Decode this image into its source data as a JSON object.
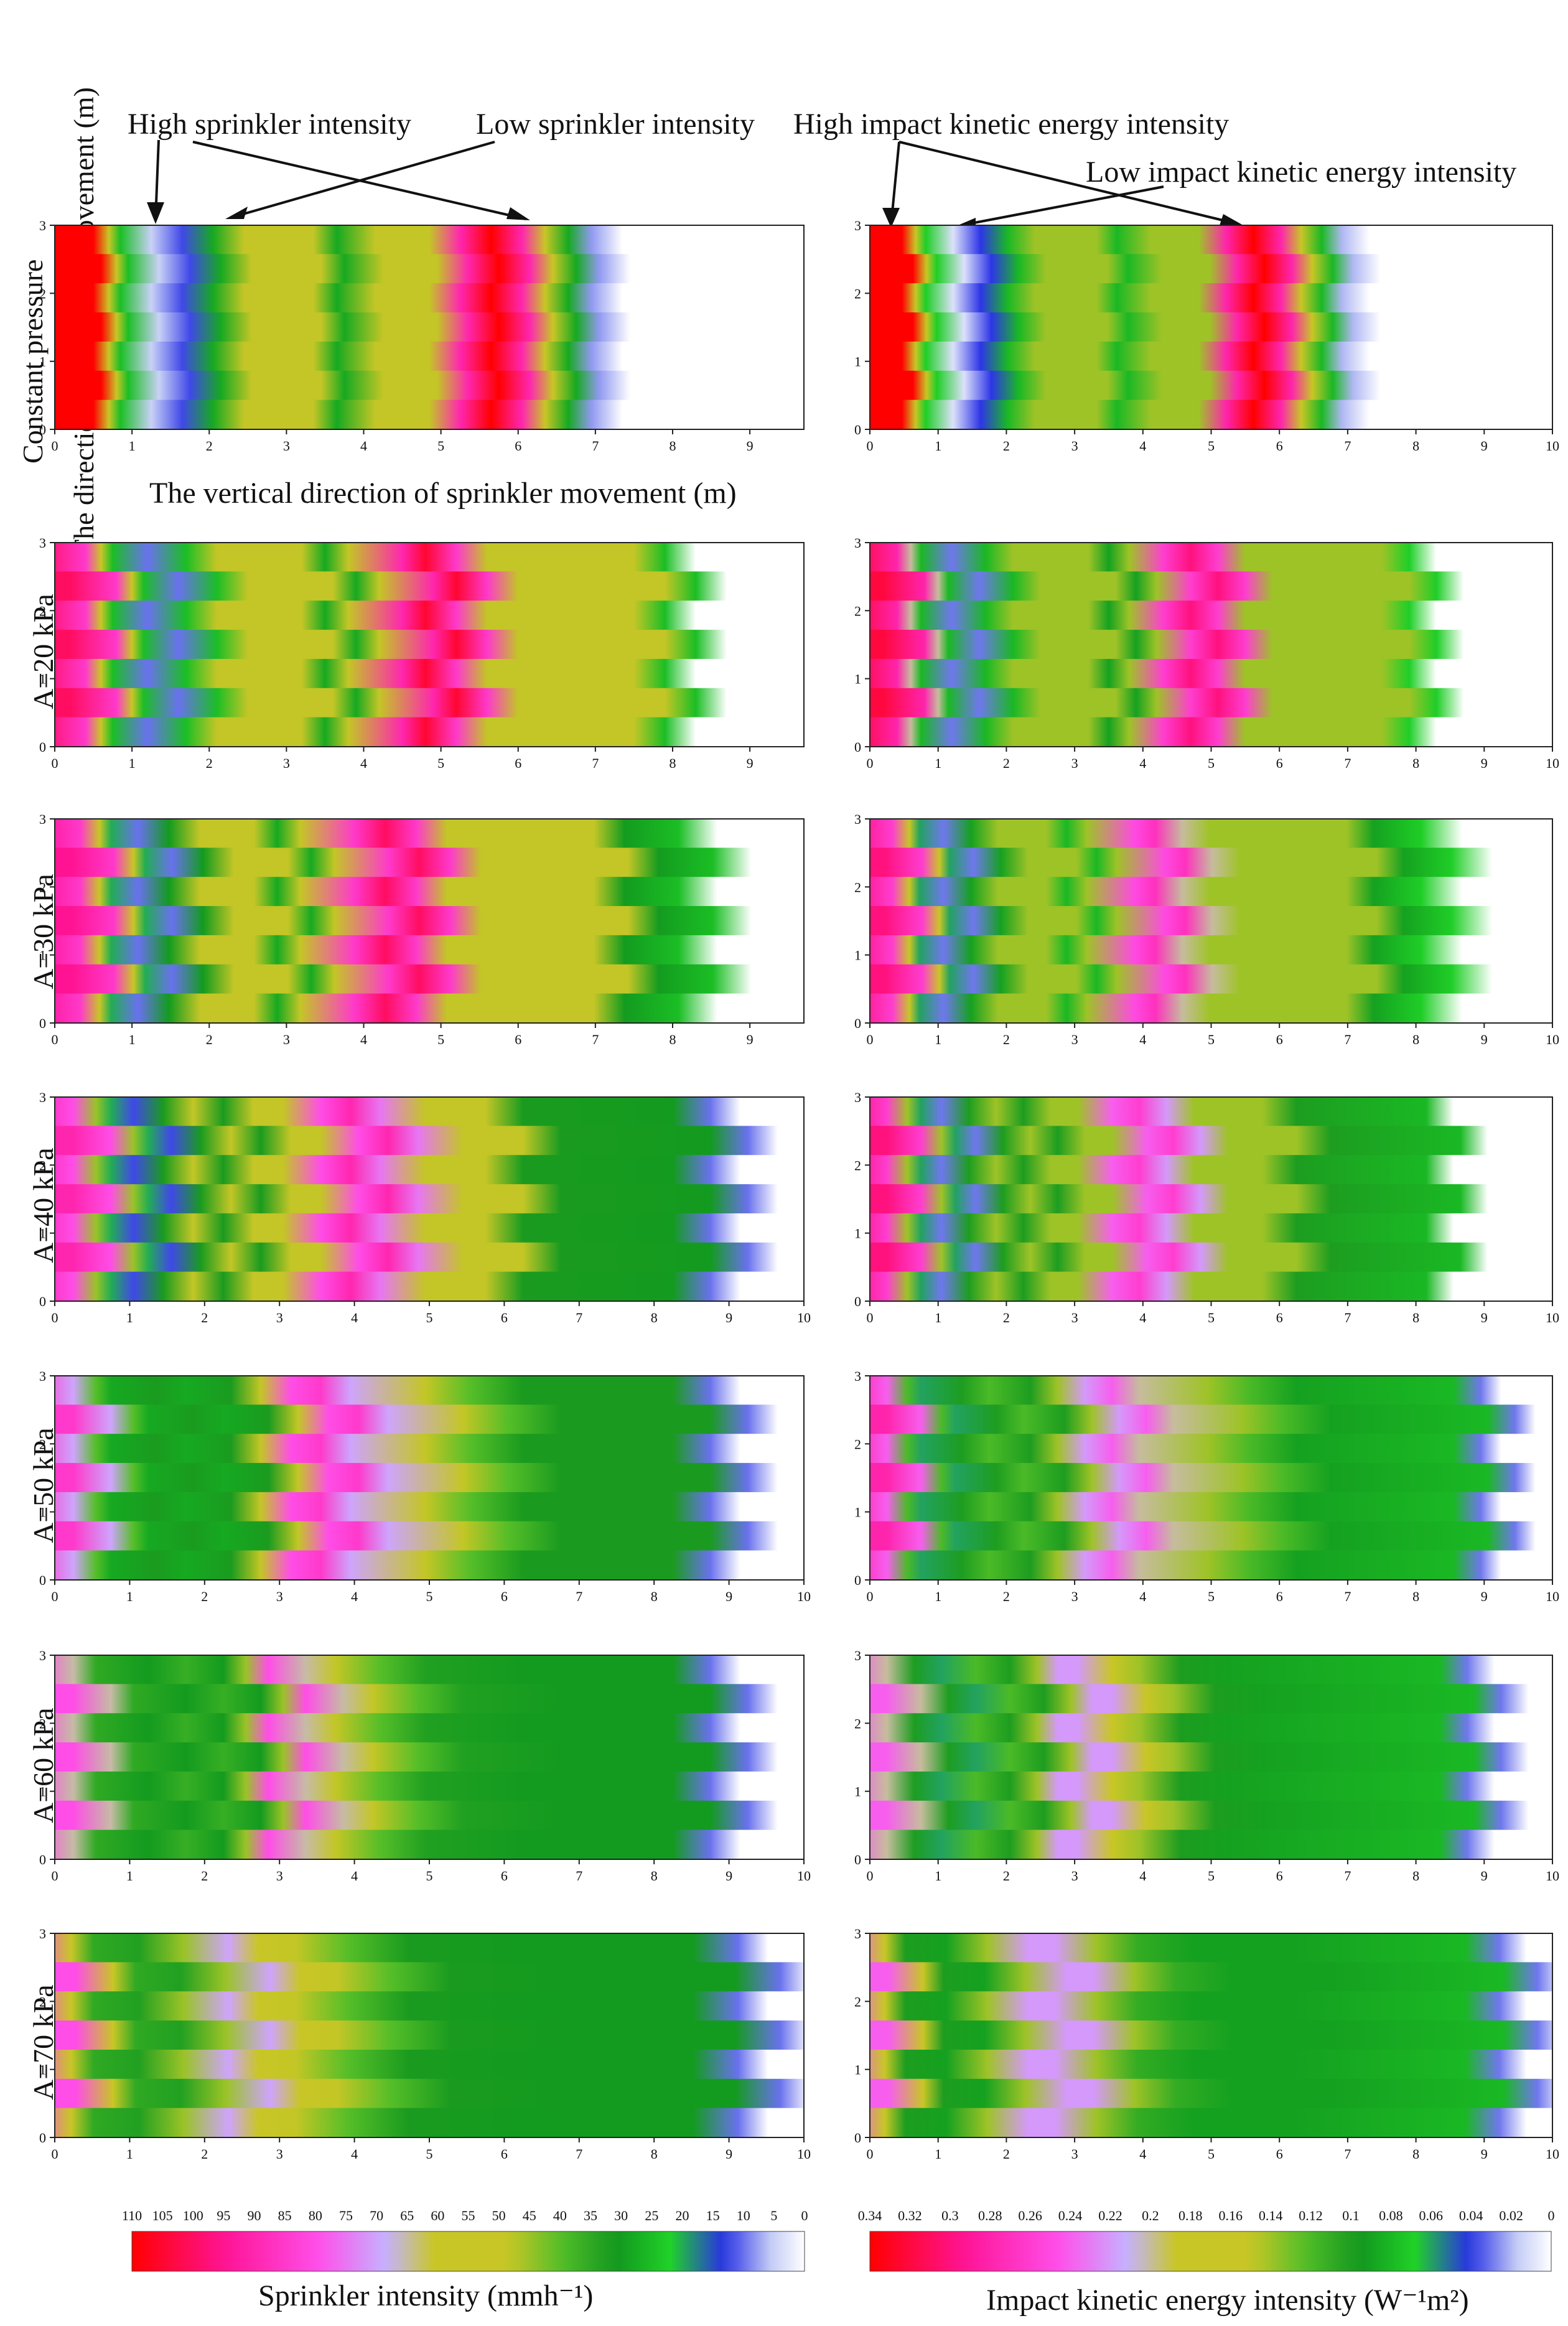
{
  "figure": {
    "annotations": {
      "high_sprinkler": "High sprinkler intensity",
      "low_sprinkler": "Low sprinkler intensity",
      "high_impact": "High impact kinetic energy intensity",
      "low_impact": "Low impact kinetic energy intensity"
    },
    "y_axis_title": "The direction  of sprinkler movement (m)",
    "x_axis_title": "The vertical direction  of sprinkler movement (m)",
    "row_labels": [
      "Constant pressure",
      "A=20 kPa",
      "A=30 kPa",
      "A=40 kPa",
      "A=50 kPa",
      "A=60 kPa",
      "A=70 kPa"
    ],
    "colorbar_left": {
      "ticks": [
        "110",
        "105",
        "100",
        "95",
        "90",
        "85",
        "80",
        "75",
        "70",
        "65",
        "60",
        "55",
        "50",
        "45",
        "40",
        "35",
        "30",
        "25",
        "20",
        "15",
        "10",
        "5",
        "0"
      ],
      "label": "Sprinkler intensity (mmh⁻¹)"
    },
    "colorbar_right": {
      "ticks": [
        "0.34",
        "0.32",
        "0.3",
        "0.28",
        "0.26",
        "0.24",
        "0.22",
        "0.2",
        "0.18",
        "0.16",
        "0.14",
        "0.12",
        "0.1",
        "0.08",
        "0.06",
        "0.04",
        "0.02",
        "0"
      ],
      "label": "Impact kinetic energy intensity (W⁻¹m²)"
    }
  },
  "chart_data": [
    {
      "type": "heatmap",
      "column": "Sprinkler intensity",
      "row": "Constant pressure",
      "xlim": [
        0,
        9.7
      ],
      "x_ticks": [
        0,
        1,
        2,
        3,
        4,
        5,
        6,
        7,
        8,
        9
      ],
      "ylim": [
        0,
        3
      ],
      "y_ticks": [
        0,
        1,
        2,
        3
      ],
      "profile_x": [
        0,
        0.55,
        0.75,
        0.9,
        1.3,
        1.7,
        2.1,
        2.5,
        3.4,
        3.7,
        4.2,
        4.9,
        5.3,
        5.7,
        6.1,
        6.4,
        6.7,
        7.0,
        7.4
      ],
      "profile_value": [
        110,
        110,
        60,
        25,
        5,
        12,
        28,
        48,
        48,
        28,
        48,
        48,
        90,
        110,
        90,
        60,
        28,
        8,
        0
      ],
      "wave_amplitude_m": 0.05
    },
    {
      "type": "heatmap",
      "column": "Impact kinetic energy intensity",
      "row": "Constant pressure",
      "xlim": [
        0,
        10
      ],
      "x_ticks": [
        0,
        1,
        2,
        3,
        4,
        5,
        6,
        7,
        8,
        9,
        10
      ],
      "ylim": [
        0,
        3
      ],
      "y_ticks": [
        0,
        1,
        2,
        3
      ],
      "profile_x": [
        0,
        0.55,
        0.75,
        0.9,
        1.3,
        1.7,
        2.1,
        2.5,
        3.4,
        3.7,
        4.2,
        4.9,
        5.3,
        5.7,
        6.1,
        6.4,
        6.7,
        7.0,
        7.4
      ],
      "profile_value": [
        0.34,
        0.34,
        0.18,
        0.07,
        0.01,
        0.04,
        0.08,
        0.14,
        0.14,
        0.08,
        0.14,
        0.14,
        0.28,
        0.34,
        0.28,
        0.18,
        0.08,
        0.02,
        0
      ],
      "wave_amplitude_m": 0.08
    },
    {
      "type": "heatmap",
      "column": "Sprinkler intensity",
      "row": "A=20 kPa",
      "xlim": [
        0,
        9.7
      ],
      "x_ticks": [
        0,
        1,
        2,
        3,
        4,
        5,
        6,
        7,
        8,
        9
      ],
      "ylim": [
        0,
        3
      ],
      "y_ticks": [
        0,
        1,
        2,
        3
      ],
      "profile_x": [
        0,
        0.6,
        0.8,
        0.95,
        1.4,
        1.9,
        2.3,
        3.4,
        3.7,
        4.0,
        4.7,
        5.0,
        5.4,
        5.8,
        7.7,
        8.1,
        8.5
      ],
      "profile_value": [
        100,
        85,
        60,
        25,
        10,
        25,
        48,
        48,
        28,
        48,
        90,
        105,
        85,
        48,
        48,
        25,
        0
      ],
      "wave_amplitude_m": 0.2
    },
    {
      "type": "heatmap",
      "column": "Impact kinetic energy intensity",
      "row": "A=20 kPa",
      "xlim": [
        0,
        10
      ],
      "x_ticks": [
        0,
        1,
        2,
        3,
        4,
        5,
        6,
        7,
        8,
        9,
        10
      ],
      "ylim": [
        0,
        3
      ],
      "y_ticks": [
        0,
        1,
        2,
        3
      ],
      "profile_x": [
        0,
        0.6,
        0.8,
        0.95,
        1.4,
        1.9,
        2.3,
        3.4,
        3.7,
        4.0,
        4.5,
        4.9,
        5.3,
        5.7,
        7.7,
        8.1,
        8.5
      ],
      "profile_value": [
        0.32,
        0.28,
        0.2,
        0.08,
        0.03,
        0.08,
        0.14,
        0.14,
        0.09,
        0.14,
        0.26,
        0.3,
        0.26,
        0.14,
        0.14,
        0.07,
        0
      ],
      "wave_amplitude_m": 0.2
    },
    {
      "type": "heatmap",
      "column": "Sprinkler intensity",
      "row": "A=30 kPa",
      "xlim": [
        0,
        9.7
      ],
      "x_ticks": [
        0,
        1,
        2,
        3,
        4,
        5,
        6,
        7,
        8,
        9
      ],
      "ylim": [
        0,
        3
      ],
      "y_ticks": [
        0,
        1,
        2,
        3
      ],
      "profile_x": [
        0,
        0.55,
        0.8,
        0.95,
        1.3,
        1.7,
        2.1,
        2.8,
        3.1,
        3.4,
        4.1,
        4.5,
        4.9,
        5.3,
        7.2,
        7.6,
        8.3,
        8.8
      ],
      "profile_value": [
        95,
        85,
        50,
        20,
        10,
        30,
        48,
        48,
        28,
        48,
        85,
        100,
        85,
        48,
        48,
        30,
        25,
        0
      ],
      "wave_amplitude_m": 0.22
    },
    {
      "type": "heatmap",
      "column": "Impact kinetic energy intensity",
      "row": "A=30 kPa",
      "xlim": [
        0,
        10
      ],
      "x_ticks": [
        0,
        1,
        2,
        3,
        4,
        5,
        6,
        7,
        8,
        9,
        10
      ],
      "ylim": [
        0,
        3
      ],
      "y_ticks": [
        0,
        1,
        2,
        3
      ],
      "profile_x": [
        0,
        0.55,
        0.8,
        0.95,
        1.3,
        1.7,
        2.1,
        2.8,
        3.1,
        3.4,
        4.1,
        4.4,
        4.8,
        5.2,
        7.2,
        7.6,
        8.3,
        8.9
      ],
      "profile_value": [
        0.3,
        0.26,
        0.16,
        0.06,
        0.03,
        0.09,
        0.14,
        0.14,
        0.08,
        0.14,
        0.25,
        0.27,
        0.2,
        0.14,
        0.14,
        0.09,
        0.07,
        0
      ],
      "wave_amplitude_m": 0.22
    },
    {
      "type": "heatmap",
      "column": "Sprinkler intensity",
      "row": "A=40 kPa",
      "xlim": [
        0,
        10
      ],
      "x_ticks": [
        0,
        1,
        2,
        3,
        4,
        5,
        6,
        7,
        8,
        9,
        10
      ],
      "ylim": [
        0,
        3
      ],
      "y_ticks": [
        0,
        1,
        2,
        3
      ],
      "profile_x": [
        0,
        0.5,
        0.8,
        1.0,
        1.3,
        1.7,
        2.1,
        2.5,
        2.9,
        3.3,
        3.8,
        4.2,
        4.6,
        5.2,
        6.0,
        6.5,
        8.5,
        9.0,
        9.4
      ],
      "profile_value": [
        90,
        80,
        45,
        20,
        12,
        32,
        48,
        32,
        48,
        48,
        80,
        90,
        75,
        48,
        48,
        32,
        30,
        10,
        0
      ],
      "wave_amplitude_m": 0.25
    },
    {
      "type": "heatmap",
      "column": "Impact kinetic energy intensity",
      "row": "A=40 kPa",
      "xlim": [
        0,
        10
      ],
      "x_ticks": [
        0,
        1,
        2,
        3,
        4,
        5,
        6,
        7,
        8,
        9,
        10
      ],
      "ylim": [
        0,
        3
      ],
      "y_ticks": [
        0,
        1,
        2,
        3
      ],
      "profile_x": [
        0,
        0.5,
        0.8,
        1.0,
        1.3,
        1.7,
        2.1,
        2.5,
        2.9,
        3.3,
        3.8,
        4.2,
        4.6,
        5.0,
        6.0,
        6.5,
        8.4,
        8.8
      ],
      "profile_value": [
        0.3,
        0.26,
        0.14,
        0.06,
        0.03,
        0.1,
        0.14,
        0.1,
        0.14,
        0.14,
        0.24,
        0.26,
        0.22,
        0.14,
        0.14,
        0.1,
        0.08,
        0
      ],
      "wave_amplitude_m": 0.25
    },
    {
      "type": "heatmap",
      "column": "Sprinkler intensity",
      "row": "A=50 kPa",
      "xlim": [
        0,
        10
      ],
      "x_ticks": [
        0,
        1,
        2,
        3,
        4,
        5,
        6,
        7,
        8,
        9,
        10
      ],
      "ylim": [
        0,
        3
      ],
      "y_ticks": [
        0,
        1,
        2,
        3
      ],
      "profile_x": [
        0,
        0.5,
        0.8,
        1.0,
        1.6,
        2.0,
        2.6,
        3.0,
        3.4,
        3.8,
        4.2,
        5.2,
        5.8,
        6.5,
        8.5,
        9.0,
        9.4
      ],
      "profile_value": [
        85,
        70,
        40,
        28,
        32,
        28,
        32,
        48,
        80,
        85,
        70,
        48,
        40,
        32,
        32,
        10,
        0
      ],
      "wave_amplitude_m": 0.25
    },
    {
      "type": "heatmap",
      "column": "Impact kinetic energy intensity",
      "row": "A=50 kPa",
      "xlim": [
        0,
        10
      ],
      "x_ticks": [
        0,
        1,
        2,
        3,
        4,
        5,
        6,
        7,
        8,
        9,
        10
      ],
      "ylim": [
        0,
        3
      ],
      "y_ticks": [
        0,
        1,
        2,
        3
      ],
      "profile_x": [
        0,
        0.5,
        0.8,
        1.0,
        1.6,
        2.0,
        2.6,
        3.0,
        3.4,
        3.8,
        4.2,
        5.2,
        5.8,
        6.5,
        8.8,
        9.2,
        9.5
      ],
      "profile_value": [
        0.28,
        0.24,
        0.12,
        0.06,
        0.1,
        0.12,
        0.1,
        0.14,
        0.22,
        0.24,
        0.2,
        0.14,
        0.12,
        0.09,
        0.08,
        0.03,
        0
      ],
      "wave_amplitude_m": 0.25
    },
    {
      "type": "heatmap",
      "column": "Sprinkler intensity",
      "row": "A=60 kPa",
      "xlim": [
        0,
        10
      ],
      "x_ticks": [
        0,
        1,
        2,
        3,
        4,
        5,
        6,
        7,
        8,
        9,
        10
      ],
      "ylim": [
        0,
        3
      ],
      "y_ticks": [
        0,
        1,
        2,
        3
      ],
      "profile_x": [
        0,
        0.5,
        0.8,
        1.5,
        2.0,
        2.5,
        2.8,
        3.1,
        3.6,
        4.0,
        4.6,
        5.2,
        6.5,
        8.5,
        9.0,
        9.4
      ],
      "profile_value": [
        80,
        65,
        35,
        30,
        36,
        30,
        45,
        80,
        65,
        48,
        40,
        33,
        30,
        30,
        10,
        0
      ],
      "wave_amplitude_m": 0.25
    },
    {
      "type": "heatmap",
      "column": "Impact kinetic energy intensity",
      "row": "A=60 kPa",
      "xlim": [
        0,
        10
      ],
      "x_ticks": [
        0,
        1,
        2,
        3,
        4,
        5,
        6,
        7,
        8,
        9,
        10
      ],
      "ylim": [
        0,
        3
      ],
      "y_ticks": [
        0,
        1,
        2,
        3
      ],
      "profile_x": [
        0,
        0.5,
        0.9,
        1.3,
        1.8,
        2.3,
        2.7,
        3.0,
        3.3,
        3.8,
        4.2,
        4.8,
        5.5,
        8.6,
        9.0,
        9.4
      ],
      "profile_value": [
        0.24,
        0.2,
        0.1,
        0.06,
        0.12,
        0.1,
        0.14,
        0.22,
        0.22,
        0.17,
        0.14,
        0.1,
        0.09,
        0.08,
        0.03,
        0
      ],
      "wave_amplitude_m": 0.25
    },
    {
      "type": "heatmap",
      "column": "Sprinkler intensity",
      "row": "A=70 kPa",
      "xlim": [
        0,
        10
      ],
      "x_ticks": [
        0,
        1,
        2,
        3,
        4,
        5,
        6,
        7,
        8,
        9,
        10
      ],
      "ylim": [
        0,
        3
      ],
      "y_ticks": [
        0,
        1,
        2,
        3
      ],
      "profile_x": [
        0,
        0.5,
        0.8,
        1.4,
        2.0,
        2.6,
        3.0,
        3.5,
        4.2,
        5.0,
        6.5,
        8.8,
        9.4,
        9.8
      ],
      "profile_value": [
        80,
        60,
        35,
        33,
        45,
        70,
        60,
        48,
        40,
        32,
        30,
        30,
        10,
        0
      ],
      "wave_amplitude_m": 0.28
    },
    {
      "type": "heatmap",
      "column": "Impact kinetic energy intensity",
      "row": "A=70 kPa",
      "xlim": [
        0,
        10
      ],
      "x_ticks": [
        0,
        1,
        2,
        3,
        4,
        5,
        6,
        7,
        8,
        9,
        10
      ],
      "ylim": [
        0,
        3
      ],
      "y_ticks": [
        0,
        1,
        2,
        3
      ],
      "profile_x": [
        0,
        0.5,
        0.8,
        1.4,
        2.0,
        2.6,
        3.0,
        3.6,
        4.2,
        5.0,
        6.5,
        9.0,
        9.5,
        9.9
      ],
      "profile_value": [
        0.24,
        0.18,
        0.1,
        0.09,
        0.14,
        0.22,
        0.22,
        0.14,
        0.11,
        0.09,
        0.09,
        0.08,
        0.03,
        0
      ],
      "wave_amplitude_m": 0.28
    }
  ]
}
